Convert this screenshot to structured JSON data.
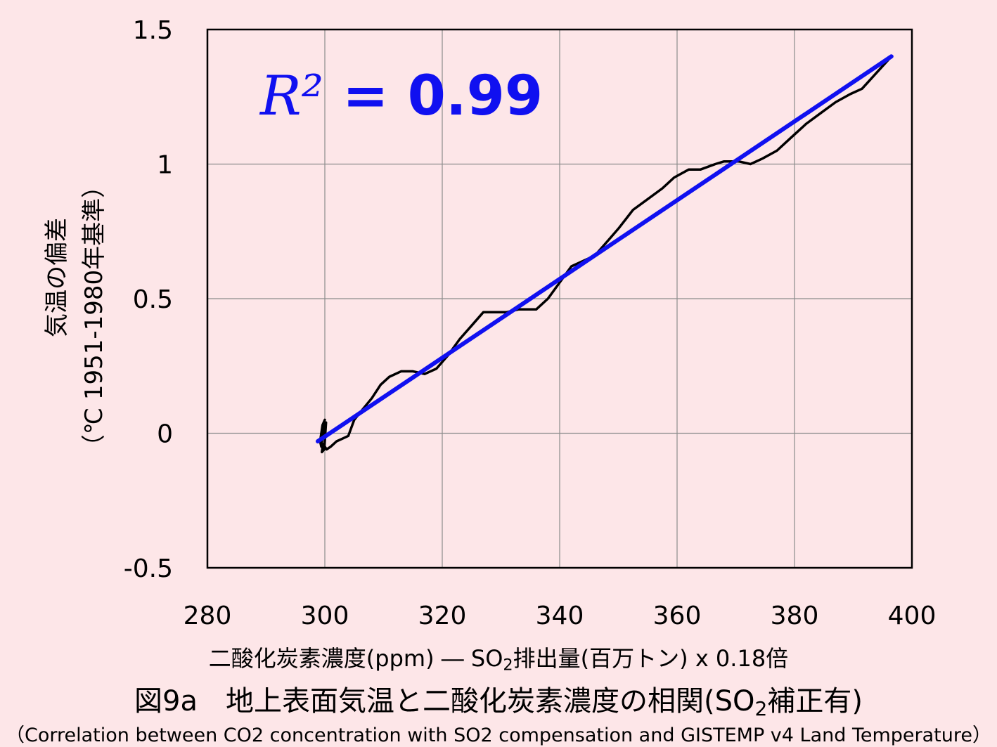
{
  "chart_data": {
    "type": "line",
    "xlim": [
      280,
      400
    ],
    "ylim": [
      -0.5,
      1.5
    ],
    "xticks": [
      "280",
      "300",
      "320",
      "340",
      "360",
      "380",
      "400"
    ],
    "yticks": [
      "1.5",
      "1",
      "0.5",
      "0",
      "-0.5"
    ],
    "grid": true,
    "ylabel_line1": "気温の偏差",
    "ylabel_line2": "（℃  1951-1980年基準）",
    "xlabel_before": "二酸化炭素濃度(ppm) ― SO",
    "xlabel_sub": "2",
    "xlabel_after": "排出量(百万トン) x 0.18倍",
    "annotation": {
      "symbol": "R²",
      "text": " = 0.99",
      "color": "#1010f0"
    },
    "series": [
      {
        "color": "#000000",
        "x": [
          300.0,
          299.6,
          299.2,
          299.4,
          299.8,
          300.2,
          299.9,
          299.5,
          299.7,
          300.3,
          301.0,
          302.0,
          303.0,
          304.0,
          305.0,
          306.5,
          308.0,
          309.5,
          311.0,
          313.0,
          315.0,
          317.0,
          319.0,
          321.0,
          323.0,
          325.0,
          327.0,
          329.0,
          331.0,
          333.0,
          335.0,
          336.0,
          338.0,
          340.0,
          342.0,
          344.0,
          346.0,
          348.0,
          350.0,
          352.5,
          355.0,
          357.5,
          359.5,
          362.0,
          364.0,
          366.5,
          368.0,
          370.5,
          372.5,
          374.5,
          377.0,
          379.5,
          382.0,
          384.5,
          387.0,
          389.5,
          391.5,
          394.0,
          396.5
        ],
        "y": [
          0.05,
          0.03,
          -0.03,
          -0.05,
          0.02,
          0.04,
          -0.06,
          -0.07,
          -0.04,
          -0.06,
          -0.05,
          -0.03,
          -0.02,
          -0.01,
          0.05,
          0.09,
          0.13,
          0.18,
          0.21,
          0.23,
          0.23,
          0.22,
          0.24,
          0.29,
          0.35,
          0.4,
          0.45,
          0.45,
          0.45,
          0.46,
          0.46,
          0.46,
          0.5,
          0.56,
          0.62,
          0.64,
          0.66,
          0.71,
          0.76,
          0.83,
          0.87,
          0.91,
          0.95,
          0.98,
          0.98,
          1.0,
          1.01,
          1.01,
          1.0,
          1.02,
          1.05,
          1.1,
          1.15,
          1.19,
          1.23,
          1.26,
          1.28,
          1.34,
          1.4
        ]
      },
      {
        "color": "#1010f0",
        "type": "regression",
        "x": [
          298.8,
          396.5
        ],
        "y": [
          -0.03,
          1.4
        ]
      }
    ]
  },
  "caption_before": "図9a　地上表面気温と二酸化炭素濃度の相関(SO",
  "caption_sub": "2",
  "caption_after": "補正有)",
  "subcaption": "（Correlation between CO2 concentration with SO2 compensation and GISTEMP v4 Land Temperature）"
}
